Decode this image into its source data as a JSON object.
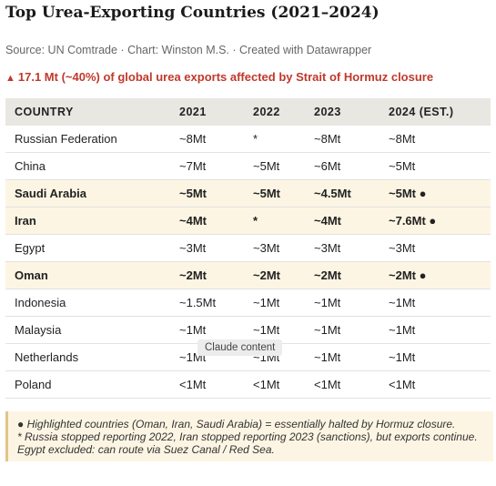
{
  "title": "Top Urea-Exporting Countries (2021–2024)",
  "source": "Source: UN Comtrade · Chart: Winston M.S. · Created with Datawrapper",
  "alert": {
    "icon": "▲",
    "text": "17.1 Mt (~40%) of global urea exports affected by Strait of Hormuz closure"
  },
  "table": {
    "headers": [
      "COUNTRY",
      "2021",
      "2022",
      "2023",
      "2024 (EST.)"
    ],
    "rows": [
      {
        "cells": [
          "Russian Federation",
          "~8Mt",
          "*",
          "~8Mt",
          "~8Mt"
        ]
      },
      {
        "cells": [
          "China",
          "~7Mt",
          "~5Mt",
          "~6Mt",
          "~5Mt"
        ]
      },
      {
        "cells": [
          "Saudi Arabia",
          "~5Mt",
          "~5Mt",
          "~4.5Mt",
          "~5Mt ●"
        ],
        "highlight": true
      },
      {
        "cells": [
          "Iran",
          "~4Mt",
          "*",
          "~4Mt",
          "~7.6Mt ●"
        ],
        "highlight": true
      },
      {
        "cells": [
          "Egypt",
          "~3Mt",
          "~3Mt",
          "~3Mt",
          "~3Mt"
        ]
      },
      {
        "cells": [
          "Oman",
          "~2Mt",
          "~2Mt",
          "~2Mt",
          "~2Mt ●"
        ],
        "highlight": true
      },
      {
        "cells": [
          "Indonesia",
          "~1.5Mt",
          "~1Mt",
          "~1Mt",
          "~1Mt"
        ]
      },
      {
        "cells": [
          "Malaysia",
          "~1Mt",
          "~1Mt",
          "~1Mt",
          "~1Mt"
        ]
      },
      {
        "cells": [
          "Netherlands",
          "~1Mt",
          "~1Mt",
          "~1Mt",
          "~1Mt"
        ]
      },
      {
        "cells": [
          "Poland",
          "<1Mt",
          "<1Mt",
          "<1Mt",
          "<1Mt"
        ]
      }
    ]
  },
  "notes": [
    "● Highlighted countries (Oman, Iran, Saudi Arabia) = essentially halted by Hormuz closure.",
    "* Russia stopped reporting 2022, Iran stopped reporting 2023 (sanctions), but exports continue. Egypt excluded: can route via Suez Canal / Red Sea."
  ],
  "tooltip": "Claude content",
  "colors": {
    "alert": "#c0392b",
    "highlight_bg": "#fdf5e3",
    "header_bg": "#e9e7e1"
  }
}
